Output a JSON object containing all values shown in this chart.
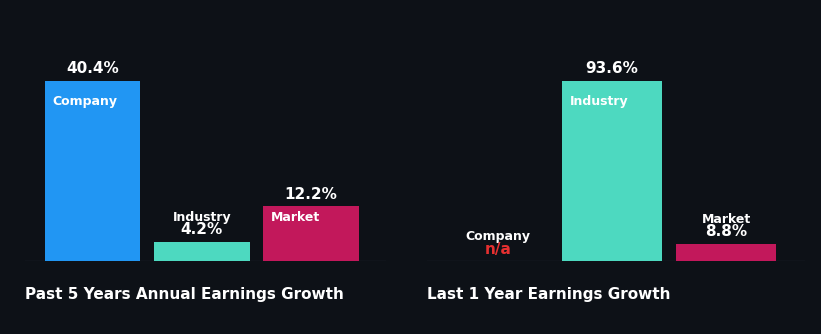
{
  "background_color": "#0d1117",
  "chart1": {
    "title": "Past 5 Years Annual Earnings Growth",
    "bars": [
      {
        "label": "Company",
        "value": 40.4,
        "color": "#2196f3",
        "label_inside": true
      },
      {
        "label": "Industry",
        "value": 4.2,
        "color": "#4dd9c0",
        "label_inside": false
      },
      {
        "label": "Market",
        "value": 12.2,
        "color": "#c2185b",
        "label_inside": true
      }
    ]
  },
  "chart2": {
    "title": "Last 1 Year Earnings Growth",
    "bars": [
      {
        "label": "Company",
        "value": 0,
        "color": "#2196f3",
        "na": true,
        "label_inside": false
      },
      {
        "label": "Industry",
        "value": 93.6,
        "color": "#4dd9c0",
        "label_inside": true
      },
      {
        "label": "Market",
        "value": 8.8,
        "color": "#c2185b",
        "label_inside": false
      }
    ]
  },
  "title_fontsize": 11,
  "label_fontsize": 9,
  "value_fontsize": 11,
  "text_color": "#ffffff",
  "na_color": "#e63030"
}
